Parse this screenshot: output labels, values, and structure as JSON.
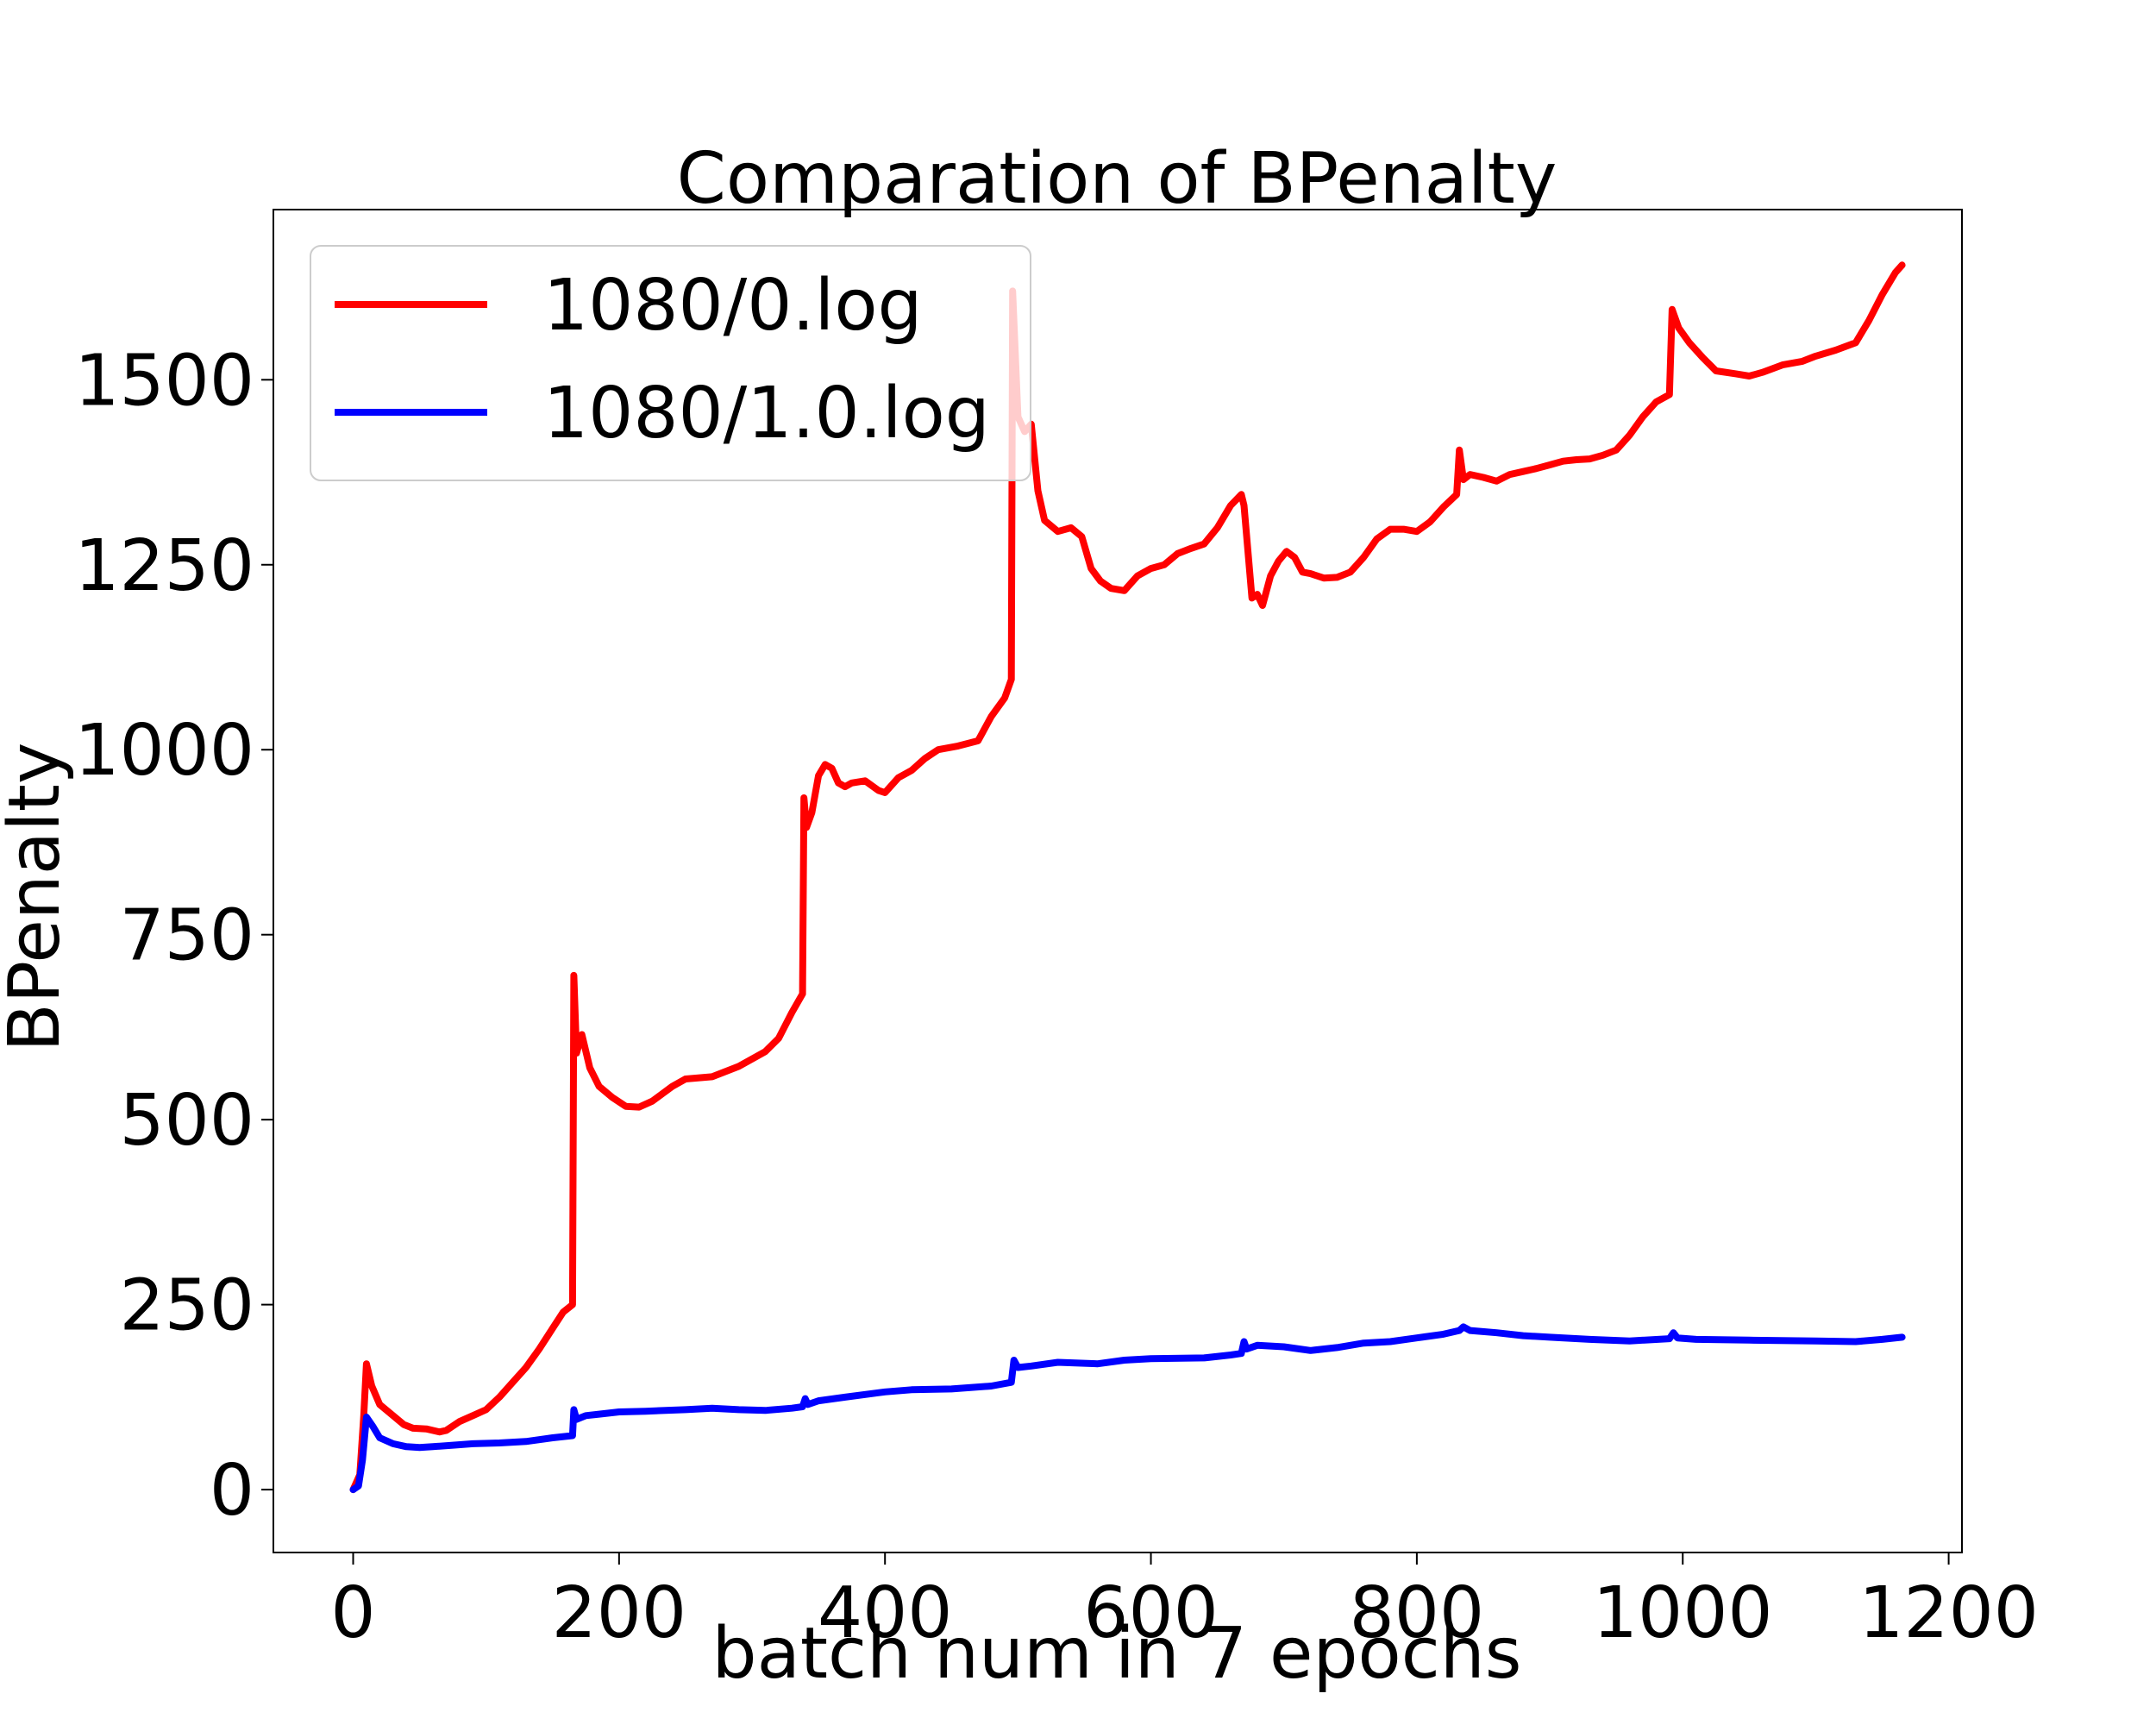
{
  "chart_data": {
    "type": "line",
    "title": "Comparation of BPenalty",
    "xlabel": "batch num in 7 epochs",
    "ylabel": "BPenalty",
    "xlim": [
      -60,
      1210
    ],
    "ylim": [
      -85,
      1730
    ],
    "xticks": [
      0,
      200,
      400,
      600,
      800,
      1000,
      1200
    ],
    "yticks": [
      0,
      250,
      500,
      750,
      1000,
      1250,
      1500
    ],
    "grid": false,
    "legend_position": "upper left",
    "series": [
      {
        "name": "1080/0.log",
        "color": "#ff0000",
        "points": [
          [
            0,
            0
          ],
          [
            5,
            20
          ],
          [
            8,
            100
          ],
          [
            10,
            170
          ],
          [
            14,
            140
          ],
          [
            20,
            115
          ],
          [
            30,
            100
          ],
          [
            38,
            88
          ],
          [
            45,
            83
          ],
          [
            55,
            82
          ],
          [
            65,
            78
          ],
          [
            70,
            80
          ],
          [
            80,
            92
          ],
          [
            90,
            100
          ],
          [
            100,
            108
          ],
          [
            110,
            125
          ],
          [
            120,
            145
          ],
          [
            130,
            165
          ],
          [
            140,
            190
          ],
          [
            150,
            218
          ],
          [
            158,
            240
          ],
          [
            165,
            250
          ],
          [
            166,
            695
          ],
          [
            168,
            590
          ],
          [
            172,
            615
          ],
          [
            178,
            570
          ],
          [
            185,
            545
          ],
          [
            195,
            530
          ],
          [
            205,
            518
          ],
          [
            215,
            517
          ],
          [
            225,
            525
          ],
          [
            240,
            545
          ],
          [
            250,
            555
          ],
          [
            270,
            558
          ],
          [
            290,
            572
          ],
          [
            310,
            592
          ],
          [
            320,
            610
          ],
          [
            330,
            645
          ],
          [
            338,
            670
          ],
          [
            339,
            935
          ],
          [
            341,
            895
          ],
          [
            345,
            915
          ],
          [
            350,
            965
          ],
          [
            355,
            980
          ],
          [
            360,
            975
          ],
          [
            365,
            955
          ],
          [
            370,
            950
          ],
          [
            375,
            955
          ],
          [
            385,
            958
          ],
          [
            395,
            945
          ],
          [
            400,
            942
          ],
          [
            410,
            962
          ],
          [
            420,
            972
          ],
          [
            430,
            988
          ],
          [
            440,
            1000
          ],
          [
            455,
            1005
          ],
          [
            470,
            1012
          ],
          [
            480,
            1045
          ],
          [
            490,
            1070
          ],
          [
            495,
            1095
          ],
          [
            496,
            1620
          ],
          [
            500,
            1450
          ],
          [
            505,
            1430
          ],
          [
            510,
            1440
          ],
          [
            515,
            1350
          ],
          [
            520,
            1310
          ],
          [
            530,
            1295
          ],
          [
            540,
            1300
          ],
          [
            548,
            1288
          ],
          [
            555,
            1245
          ],
          [
            562,
            1228
          ],
          [
            570,
            1218
          ],
          [
            580,
            1215
          ],
          [
            590,
            1235
          ],
          [
            600,
            1245
          ],
          [
            610,
            1250
          ],
          [
            620,
            1265
          ],
          [
            630,
            1272
          ],
          [
            640,
            1278
          ],
          [
            650,
            1300
          ],
          [
            660,
            1330
          ],
          [
            668,
            1345
          ],
          [
            670,
            1330
          ],
          [
            676,
            1205
          ],
          [
            680,
            1210
          ],
          [
            684,
            1195
          ],
          [
            690,
            1235
          ],
          [
            696,
            1255
          ],
          [
            702,
            1268
          ],
          [
            708,
            1260
          ],
          [
            714,
            1240
          ],
          [
            720,
            1238
          ],
          [
            730,
            1232
          ],
          [
            740,
            1233
          ],
          [
            750,
            1240
          ],
          [
            760,
            1260
          ],
          [
            770,
            1285
          ],
          [
            780,
            1298
          ],
          [
            790,
            1298
          ],
          [
            800,
            1295
          ],
          [
            810,
            1308
          ],
          [
            820,
            1328
          ],
          [
            830,
            1345
          ],
          [
            832,
            1405
          ],
          [
            835,
            1365
          ],
          [
            840,
            1372
          ],
          [
            850,
            1368
          ],
          [
            860,
            1363
          ],
          [
            870,
            1372
          ],
          [
            880,
            1376
          ],
          [
            890,
            1380
          ],
          [
            900,
            1385
          ],
          [
            910,
            1390
          ],
          [
            920,
            1392
          ],
          [
            930,
            1393
          ],
          [
            940,
            1398
          ],
          [
            950,
            1405
          ],
          [
            960,
            1425
          ],
          [
            970,
            1450
          ],
          [
            980,
            1470
          ],
          [
            990,
            1480
          ],
          [
            992,
            1595
          ],
          [
            997,
            1570
          ],
          [
            1005,
            1550
          ],
          [
            1015,
            1530
          ],
          [
            1025,
            1512
          ],
          [
            1040,
            1508
          ],
          [
            1050,
            1505
          ],
          [
            1060,
            1510
          ],
          [
            1075,
            1520
          ],
          [
            1090,
            1525
          ],
          [
            1100,
            1532
          ],
          [
            1115,
            1540
          ],
          [
            1130,
            1550
          ],
          [
            1140,
            1580
          ],
          [
            1150,
            1615
          ],
          [
            1160,
            1645
          ],
          [
            1165,
            1655
          ]
        ]
      },
      {
        "name": "1080/1.0.log",
        "color": "#0000ff",
        "points": [
          [
            0,
            0
          ],
          [
            4,
            5
          ],
          [
            7,
            40
          ],
          [
            10,
            98
          ],
          [
            15,
            85
          ],
          [
            20,
            70
          ],
          [
            30,
            62
          ],
          [
            40,
            58
          ],
          [
            50,
            57
          ],
          [
            60,
            58
          ],
          [
            75,
            60
          ],
          [
            90,
            62
          ],
          [
            110,
            63
          ],
          [
            130,
            65
          ],
          [
            150,
            70
          ],
          [
            165,
            73
          ],
          [
            166,
            108
          ],
          [
            168,
            95
          ],
          [
            175,
            100
          ],
          [
            185,
            102
          ],
          [
            200,
            105
          ],
          [
            220,
            106
          ],
          [
            250,
            108
          ],
          [
            270,
            110
          ],
          [
            290,
            108
          ],
          [
            310,
            107
          ],
          [
            330,
            110
          ],
          [
            338,
            112
          ],
          [
            340,
            123
          ],
          [
            342,
            115
          ],
          [
            350,
            120
          ],
          [
            370,
            125
          ],
          [
            400,
            132
          ],
          [
            420,
            135
          ],
          [
            450,
            136
          ],
          [
            480,
            140
          ],
          [
            495,
            145
          ],
          [
            497,
            175
          ],
          [
            500,
            165
          ],
          [
            510,
            167
          ],
          [
            530,
            172
          ],
          [
            560,
            170
          ],
          [
            580,
            175
          ],
          [
            600,
            177
          ],
          [
            640,
            178
          ],
          [
            660,
            182
          ],
          [
            668,
            184
          ],
          [
            670,
            200
          ],
          [
            672,
            190
          ],
          [
            680,
            195
          ],
          [
            700,
            193
          ],
          [
            720,
            188
          ],
          [
            740,
            192
          ],
          [
            760,
            198
          ],
          [
            780,
            200
          ],
          [
            800,
            205
          ],
          [
            820,
            210
          ],
          [
            832,
            215
          ],
          [
            835,
            220
          ],
          [
            840,
            215
          ],
          [
            860,
            212
          ],
          [
            880,
            208
          ],
          [
            900,
            206
          ],
          [
            930,
            203
          ],
          [
            960,
            201
          ],
          [
            990,
            204
          ],
          [
            993,
            212
          ],
          [
            996,
            205
          ],
          [
            1010,
            203
          ],
          [
            1050,
            202
          ],
          [
            1100,
            201
          ],
          [
            1130,
            200
          ],
          [
            1150,
            203
          ],
          [
            1165,
            206
          ]
        ]
      }
    ]
  }
}
